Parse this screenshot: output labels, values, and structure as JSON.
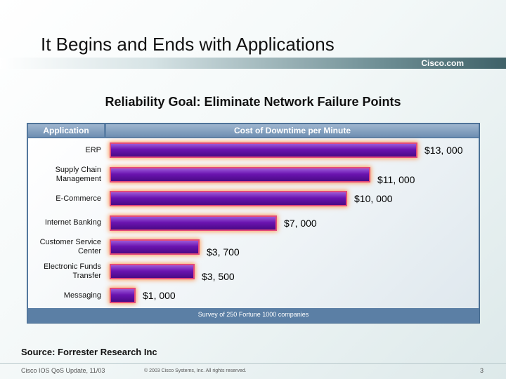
{
  "slide": {
    "title": "It Begins and Ends with Applications",
    "brand": "Cisco.com",
    "subtitle": "Reliability Goal: Eliminate Network Failure Points",
    "source": "Source: Forrester Research Inc",
    "footer_left": "Cisco IOS QoS Update, 11/03",
    "footer_mid": "© 2003 Cisco Systems, Inc. All rights reserved.",
    "page_number": "3"
  },
  "chart_data": {
    "type": "bar",
    "orientation": "horizontal",
    "column_headers": [
      "Application",
      "Cost of Downtime per Minute"
    ],
    "categories": [
      "ERP",
      "Supply Chain Management",
      "E-Commerce",
      "Internet Banking",
      "Customer Service Center",
      "Electronic Funds Transfer",
      "Messaging"
    ],
    "category_lines": [
      [
        "ERP"
      ],
      [
        "Supply Chain",
        "Management"
      ],
      [
        "E-Commerce"
      ],
      [
        "Internet Banking"
      ],
      [
        "Customer Service",
        "Center"
      ],
      [
        "Electronic Funds",
        "Transfer"
      ],
      [
        "Messaging"
      ]
    ],
    "values": [
      13000,
      11000,
      10000,
      7000,
      3700,
      3500,
      1000
    ],
    "value_labels": [
      "$13, 000",
      "$11, 000",
      "$10, 000",
      "$7, 000",
      "$3, 700",
      "$3, 500",
      "$1, 000"
    ],
    "note": "Survey of 250 Fortune 1000 companies",
    "xlim": [
      0,
      13000
    ],
    "grid": false,
    "colors": {
      "bar": "#6a14b0",
      "bar_glow": "#ff8c3c",
      "panel": "#5b7fa5"
    }
  }
}
